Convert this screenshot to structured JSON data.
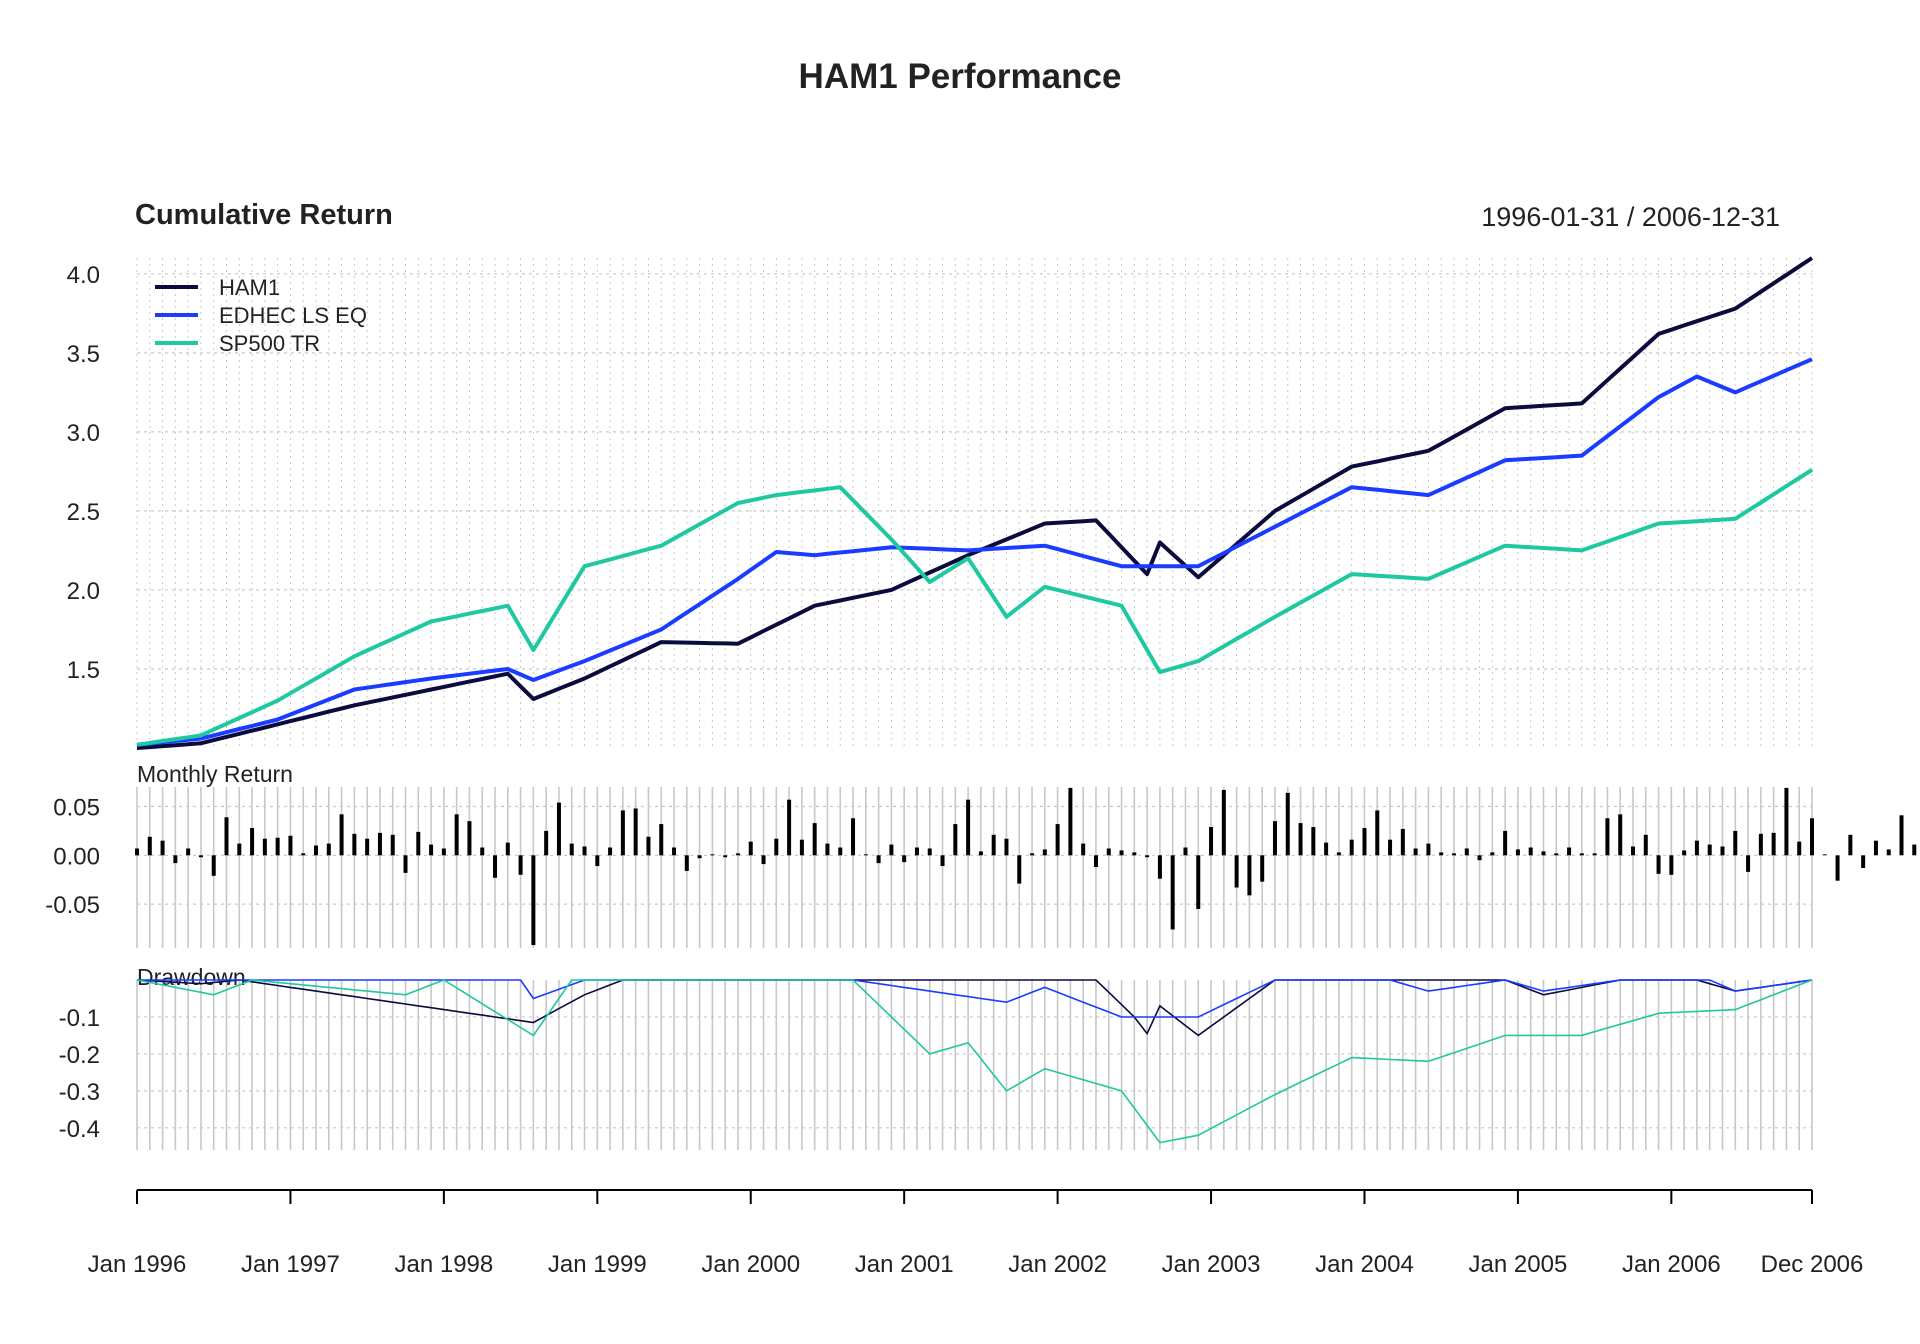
{
  "title": "HAM1 Performance",
  "colors": {
    "HAM1": "#0b0b3f",
    "EDHEC LS EQ": "#1a3cff",
    "SP500 TR": "#1ec8a0",
    "grid": "#c8c8c8",
    "bar": "#000000"
  },
  "chart_data": [
    {
      "type": "line",
      "title": "Cumulative Return",
      "date_range_label": "1996-01-31 / 2006-12-31",
      "x_range": [
        "1996-01",
        "2006-12"
      ],
      "ylim": [
        1.0,
        4.1
      ],
      "yticks": [
        "1.5",
        "2.0",
        "2.5",
        "3.0",
        "3.5",
        "4.0"
      ],
      "grid": true,
      "legend_position": "top-left",
      "series": [
        {
          "name": "HAM1",
          "anchors": [
            [
              "1996-01",
              1.0
            ],
            [
              "1996-06",
              1.03
            ],
            [
              "1996-12",
              1.15
            ],
            [
              "1997-06",
              1.27
            ],
            [
              "1997-12",
              1.37
            ],
            [
              "1998-06",
              1.47
            ],
            [
              "1998-08",
              1.31
            ],
            [
              "1998-12",
              1.44
            ],
            [
              "1999-06",
              1.67
            ],
            [
              "1999-12",
              1.66
            ],
            [
              "2000-06",
              1.9
            ],
            [
              "2000-12",
              2.0
            ],
            [
              "2001-06",
              2.22
            ],
            [
              "2001-12",
              2.42
            ],
            [
              "2002-04",
              2.44
            ],
            [
              "2002-08",
              2.1
            ],
            [
              "2002-09",
              2.3
            ],
            [
              "2002-12",
              2.08
            ],
            [
              "2003-06",
              2.5
            ],
            [
              "2003-12",
              2.78
            ],
            [
              "2004-06",
              2.88
            ],
            [
              "2004-12",
              3.15
            ],
            [
              "2005-06",
              3.18
            ],
            [
              "2005-12",
              3.62
            ],
            [
              "2006-06",
              3.78
            ],
            [
              "2006-12",
              4.1
            ]
          ]
        },
        {
          "name": "EDHEC LS EQ",
          "anchors": [
            [
              "1996-01",
              1.02
            ],
            [
              "1996-06",
              1.06
            ],
            [
              "1996-12",
              1.18
            ],
            [
              "1997-06",
              1.37
            ],
            [
              "1997-12",
              1.44
            ],
            [
              "1998-06",
              1.5
            ],
            [
              "1998-08",
              1.43
            ],
            [
              "1998-12",
              1.55
            ],
            [
              "1999-06",
              1.75
            ],
            [
              "1999-12",
              2.07
            ],
            [
              "2000-03",
              2.24
            ],
            [
              "2000-06",
              2.22
            ],
            [
              "2000-12",
              2.27
            ],
            [
              "2001-06",
              2.25
            ],
            [
              "2001-12",
              2.28
            ],
            [
              "2002-06",
              2.15
            ],
            [
              "2002-12",
              2.15
            ],
            [
              "2003-06",
              2.4
            ],
            [
              "2003-12",
              2.65
            ],
            [
              "2004-06",
              2.6
            ],
            [
              "2004-12",
              2.82
            ],
            [
              "2005-06",
              2.85
            ],
            [
              "2005-12",
              3.22
            ],
            [
              "2006-03",
              3.35
            ],
            [
              "2006-06",
              3.25
            ],
            [
              "2006-12",
              3.46
            ]
          ]
        },
        {
          "name": "SP500 TR",
          "anchors": [
            [
              "1996-01",
              1.02
            ],
            [
              "1996-06",
              1.08
            ],
            [
              "1996-12",
              1.3
            ],
            [
              "1997-06",
              1.58
            ],
            [
              "1997-12",
              1.8
            ],
            [
              "1998-06",
              1.9
            ],
            [
              "1998-08",
              1.62
            ],
            [
              "1998-12",
              2.15
            ],
            [
              "1999-06",
              2.28
            ],
            [
              "1999-12",
              2.55
            ],
            [
              "2000-03",
              2.6
            ],
            [
              "2000-08",
              2.65
            ],
            [
              "2000-12",
              2.32
            ],
            [
              "2001-03",
              2.05
            ],
            [
              "2001-06",
              2.2
            ],
            [
              "2001-09",
              1.83
            ],
            [
              "2001-12",
              2.02
            ],
            [
              "2002-06",
              1.9
            ],
            [
              "2002-09",
              1.48
            ],
            [
              "2002-12",
              1.55
            ],
            [
              "2003-06",
              1.83
            ],
            [
              "2003-12",
              2.1
            ],
            [
              "2004-06",
              2.07
            ],
            [
              "2004-12",
              2.28
            ],
            [
              "2005-06",
              2.25
            ],
            [
              "2005-12",
              2.42
            ],
            [
              "2006-06",
              2.45
            ],
            [
              "2006-12",
              2.76
            ]
          ]
        }
      ]
    },
    {
      "type": "bar",
      "title": "Monthly Return",
      "series_name": "HAM1",
      "ylim": [
        -0.095,
        0.07
      ],
      "yticks": [
        "0.05",
        "0.00",
        "-0.05"
      ],
      "start_month": "1996-01",
      "values": [
        0.007,
        0.019,
        0.015,
        -0.008,
        0.007,
        -0.002,
        -0.021,
        0.039,
        0.012,
        0.028,
        0.017,
        0.018,
        0.02,
        0.002,
        0.01,
        0.012,
        0.042,
        0.022,
        0.017,
        0.023,
        0.021,
        -0.018,
        0.024,
        0.011,
        0.007,
        0.042,
        0.035,
        0.008,
        -0.023,
        0.013,
        -0.02,
        -0.092,
        0.025,
        0.054,
        0.012,
        0.009,
        -0.011,
        0.008,
        0.046,
        0.048,
        0.019,
        0.032,
        0.008,
        -0.016,
        -0.003,
        0.001,
        -0.002,
        0.002,
        0.014,
        -0.009,
        0.017,
        0.057,
        0.016,
        0.033,
        0.012,
        0.008,
        0.038,
        0.001,
        -0.008,
        0.011,
        -0.007,
        0.008,
        0.007,
        -0.011,
        0.032,
        0.057,
        0.004,
        0.021,
        0.017,
        -0.029,
        0.002,
        0.006,
        0.032,
        0.069,
        0.012,
        -0.012,
        0.007,
        0.005,
        0.003,
        -0.002,
        -0.024,
        -0.076,
        0.008,
        -0.055,
        0.029,
        0.067,
        -0.033,
        -0.041,
        -0.027,
        0.035,
        0.064,
        0.033,
        0.029,
        0.013,
        0.003,
        0.016,
        0.028,
        0.046,
        0.016,
        0.027,
        0.007,
        0.012,
        0.003,
        0.002,
        0.007,
        -0.005,
        0.003,
        0.025,
        0.006,
        0.008,
        0.004,
        0.002,
        0.008,
        0.002,
        0.002,
        0.038,
        0.042,
        0.009,
        0.021,
        -0.019,
        -0.02,
        0.005,
        0.015,
        0.011,
        0.009,
        0.025,
        -0.017,
        0.022,
        0.023,
        0.069,
        0.014,
        0.038,
        0.001,
        -0.026,
        0.021,
        -0.013,
        0.015,
        0.006,
        0.041,
        0.011,
        0.011
      ]
    },
    {
      "type": "line",
      "title": "Drawdown",
      "ylim": [
        -0.46,
        0.0
      ],
      "yticks": [
        "-0.1",
        "-0.2",
        "-0.3",
        "-0.4"
      ],
      "series": [
        {
          "name": "HAM1",
          "anchors": [
            [
              "1996-01",
              0.0
            ],
            [
              "1996-06",
              -0.01
            ],
            [
              "1996-09",
              0.0
            ],
            [
              "1998-08",
              -0.115
            ],
            [
              "1998-12",
              -0.04
            ],
            [
              "1999-03",
              0.0
            ],
            [
              "2002-04",
              0.0
            ],
            [
              "2002-07",
              -0.1
            ],
            [
              "2002-08",
              -0.145
            ],
            [
              "2002-09",
              -0.07
            ],
            [
              "2002-12",
              -0.15
            ],
            [
              "2003-06",
              0.0
            ],
            [
              "2004-12",
              0.0
            ],
            [
              "2005-03",
              -0.04
            ],
            [
              "2005-06",
              -0.02
            ],
            [
              "2005-09",
              0.0
            ],
            [
              "2006-03",
              0.0
            ],
            [
              "2006-06",
              -0.03
            ],
            [
              "2006-12",
              0.0
            ]
          ]
        },
        {
          "name": "EDHEC LS EQ",
          "anchors": [
            [
              "1996-01",
              0.0
            ],
            [
              "1998-07",
              0.0
            ],
            [
              "1998-08",
              -0.05
            ],
            [
              "1998-12",
              0.0
            ],
            [
              "2000-09",
              0.0
            ],
            [
              "2001-09",
              -0.06
            ],
            [
              "2001-12",
              -0.02
            ],
            [
              "2002-06",
              -0.1
            ],
            [
              "2002-12",
              -0.1
            ],
            [
              "2003-06",
              0.0
            ],
            [
              "2004-03",
              0.0
            ],
            [
              "2004-06",
              -0.03
            ],
            [
              "2004-12",
              0.0
            ],
            [
              "2005-03",
              -0.03
            ],
            [
              "2005-09",
              0.0
            ],
            [
              "2006-04",
              0.0
            ],
            [
              "2006-06",
              -0.03
            ],
            [
              "2006-12",
              0.0
            ]
          ]
        },
        {
          "name": "SP500 TR",
          "anchors": [
            [
              "1996-01",
              0.0
            ],
            [
              "1996-07",
              -0.04
            ],
            [
              "1996-10",
              0.0
            ],
            [
              "1997-10",
              -0.04
            ],
            [
              "1998-01",
              0.0
            ],
            [
              "1998-08",
              -0.15
            ],
            [
              "1998-11",
              0.0
            ],
            [
              "2000-03",
              0.0
            ],
            [
              "2000-09",
              0.0
            ],
            [
              "2001-03",
              -0.2
            ],
            [
              "2001-06",
              -0.17
            ],
            [
              "2001-09",
              -0.3
            ],
            [
              "2001-12",
              -0.24
            ],
            [
              "2002-06",
              -0.3
            ],
            [
              "2002-09",
              -0.44
            ],
            [
              "2002-12",
              -0.42
            ],
            [
              "2003-06",
              -0.31
            ],
            [
              "2003-12",
              -0.21
            ],
            [
              "2004-06",
              -0.22
            ],
            [
              "2004-12",
              -0.15
            ],
            [
              "2005-06",
              -0.15
            ],
            [
              "2005-12",
              -0.09
            ],
            [
              "2006-06",
              -0.08
            ],
            [
              "2006-12",
              0.0
            ]
          ]
        }
      ]
    }
  ],
  "x_axis_labels": [
    "Jan 1996",
    "Jan 1997",
    "Jan 1998",
    "Jan 1999",
    "Jan 2000",
    "Jan 2001",
    "Jan 2002",
    "Jan 2003",
    "Jan 2004",
    "Jan 2005",
    "Jan 2006",
    "Dec 2006"
  ]
}
